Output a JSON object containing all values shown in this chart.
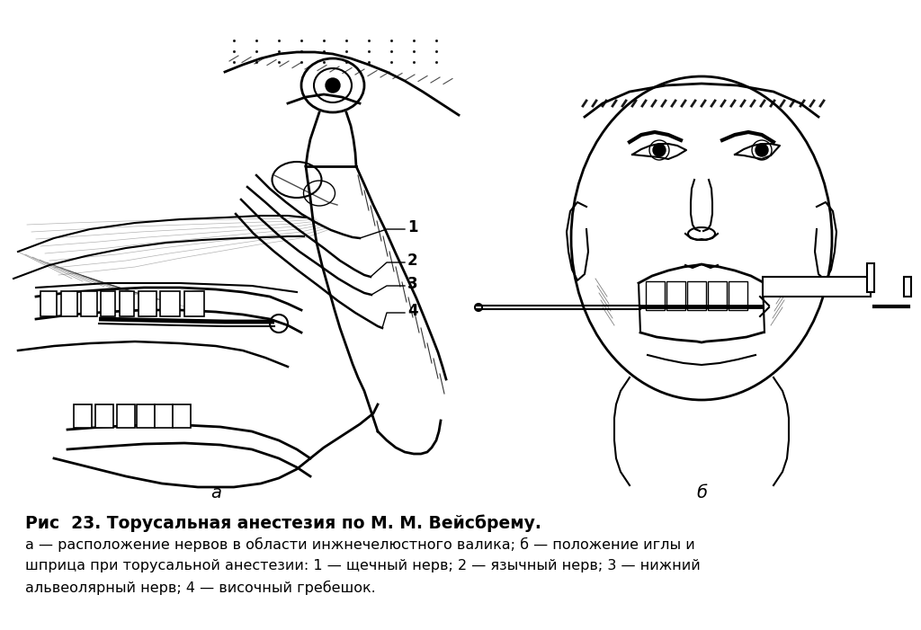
{
  "bg_color": "#ffffff",
  "title_line1": "Рис  23. Торусальная анестезия по М. М. Вейсбрему.",
  "caption_line2": "а — расположение нервов в области инжнечелюстного валика; б — положение иглы и",
  "caption_line3": "шприца при торусальной анестезии: 1 — щечный нерв; 2 — язычный нерв; 3 — нижний",
  "caption_line4": "альвеолярный нерв; 4 — височный гребешок.",
  "label_a": "а",
  "label_b": "б",
  "numbers": [
    "1",
    "2",
    "3",
    "4"
  ],
  "fig_width": 10.24,
  "fig_height": 7.01,
  "dpi": 100
}
